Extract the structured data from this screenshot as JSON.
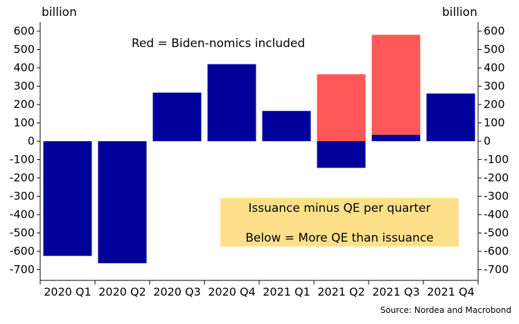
{
  "chart_data": {
    "type": "bar",
    "subtype": "stacked",
    "title": "",
    "xlabel": "",
    "ylabel_left": "billion",
    "ylabel_right": "billion",
    "ylim": [
      -750,
      650
    ],
    "yticks": [
      600,
      500,
      400,
      300,
      200,
      100,
      0,
      -100,
      -200,
      -300,
      -400,
      -500,
      -600,
      -700
    ],
    "grid": false,
    "categories": [
      "2020 Q1",
      "2020 Q2",
      "2020 Q3",
      "2020 Q4",
      "2021 Q1",
      "2021 Q2",
      "2021 Q3",
      "2021 Q4"
    ],
    "series": [
      {
        "values": [
          -625,
          -665,
          265,
          420,
          165,
          -145,
          35,
          260
        ],
        "color": "#00009A"
      },
      {
        "values": [
          0,
          0,
          0,
          0,
          0,
          365,
          545,
          0
        ],
        "color": "#FF5757"
      }
    ],
    "annotations": {
      "legend_note": "Red = Biden-nomics included",
      "box_line1": "Issuance minus QE per quarter",
      "box_line2": "Below = More QE than issuance",
      "box_color": "#FFE08A"
    },
    "source": "Source: Nordea and Macrobond"
  }
}
